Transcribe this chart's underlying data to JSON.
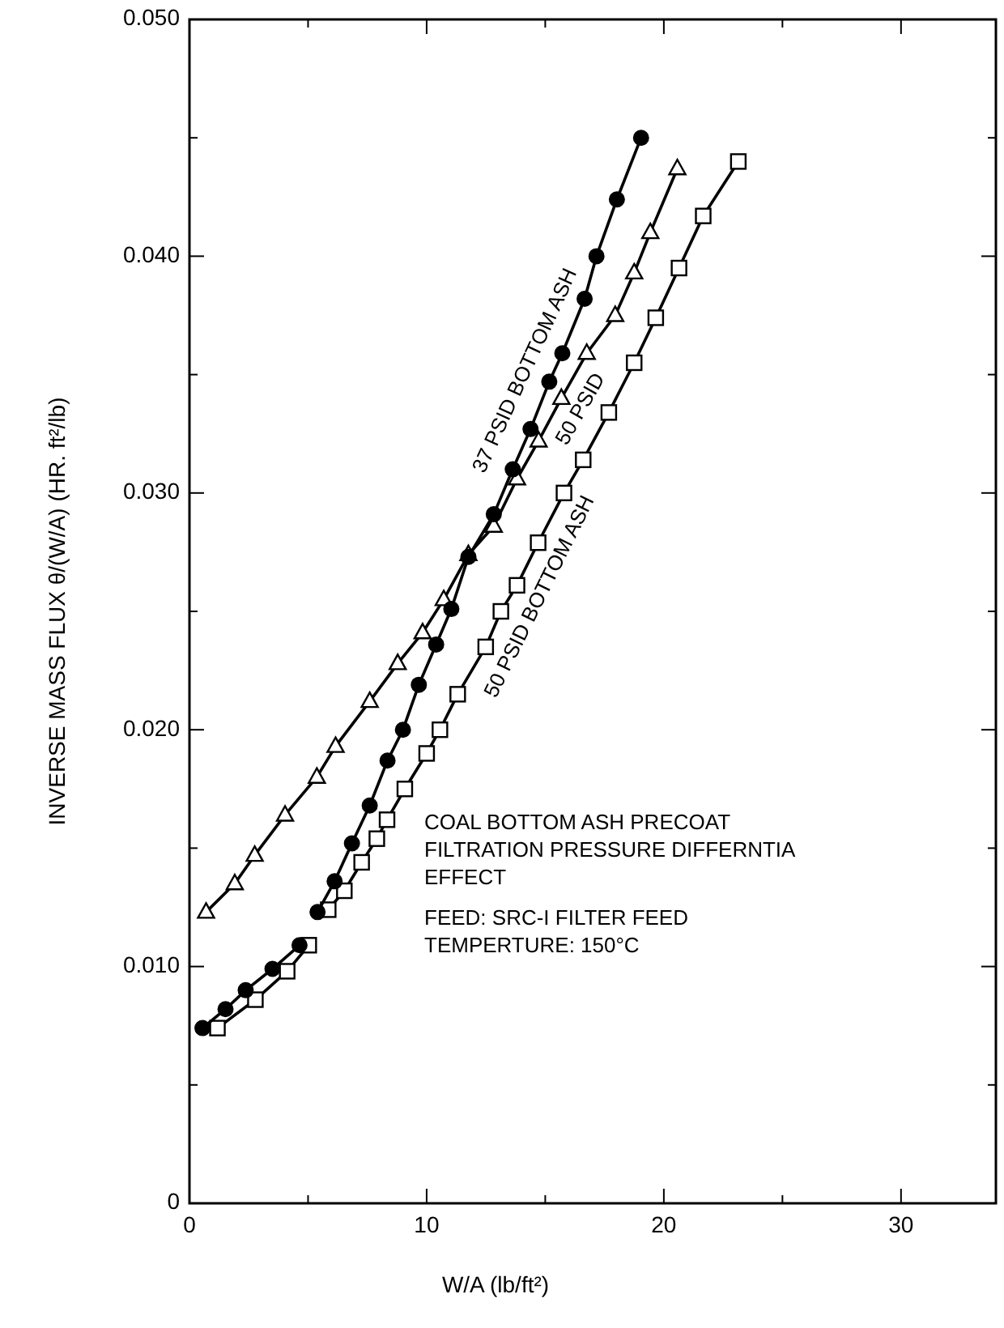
{
  "chart_data": {
    "type": "line",
    "xlabel": "W/A (lb/ft²)",
    "ylabel": "INVERSE MASS FLUX θ/(W/A) (HR. ft²/lb)",
    "xlim": [
      0,
      34
    ],
    "ylim": [
      0,
      0.05
    ],
    "xticks": [
      0,
      {
        "value": 5,
        "label": null
      },
      10,
      {
        "value": 15,
        "label": null
      },
      20,
      {
        "value": 25,
        "label": null
      },
      30
    ],
    "yticks": [
      0,
      {
        "value": 0.005,
        "label": null
      },
      {
        "value": 0.01,
        "label": "0.010"
      },
      {
        "value": 0.015,
        "label": null
      },
      {
        "value": 0.02,
        "label": "0.020"
      },
      {
        "value": 0.025,
        "label": null
      },
      {
        "value": 0.03,
        "label": "0.030"
      },
      {
        "value": 0.035,
        "label": null
      },
      {
        "value": 0.04,
        "label": "0.040"
      },
      {
        "value": 0.045,
        "label": null
      },
      {
        "value": 0.05,
        "label": "0.050"
      }
    ],
    "grid": false,
    "line_style": "solid",
    "series": [
      {
        "name": "37 PSID BOTTOM ASH",
        "color": "#000000",
        "marker": "circle",
        "x": [
          0.55,
          1.52,
          2.37,
          3.5,
          4.64,
          null,
          5.4,
          6.12,
          6.85,
          7.6,
          8.35,
          9.0,
          9.67,
          10.4,
          11.04,
          11.76,
          12.83,
          13.63,
          14.38,
          15.17,
          15.72,
          16.66,
          17.16,
          18.02,
          19.04
        ],
        "values": [
          0.0074,
          0.0082,
          0.009,
          0.0099,
          0.0109,
          null,
          0.0123,
          0.0136,
          0.0152,
          0.0168,
          0.0187,
          0.02,
          0.0219,
          0.0236,
          0.0251,
          0.0273,
          0.0291,
          0.031,
          0.0327,
          0.0347,
          0.0359,
          0.0382,
          0.04,
          0.0424,
          0.045
        ]
      },
      {
        "name": "50 PSID",
        "color": "#000000",
        "marker": "triangle",
        "x": [
          0.7,
          1.91,
          2.75,
          4.03,
          5.37,
          6.16,
          7.6,
          8.78,
          9.83,
          10.72,
          11.76,
          12.83,
          13.81,
          14.72,
          15.68,
          16.75,
          17.95,
          18.75,
          19.43,
          20.57
        ],
        "values": [
          0.0123,
          0.0135,
          0.0147,
          0.0164,
          0.018,
          0.0193,
          0.0212,
          0.0228,
          0.0241,
          0.0255,
          0.0274,
          0.0286,
          0.0306,
          0.0322,
          0.034,
          0.0359,
          0.0375,
          0.0393,
          0.041,
          0.0437
        ]
      },
      {
        "name": "50 PSID BOTTOM ASH",
        "color": "#000000",
        "marker": "square",
        "x": [
          1.18,
          2.78,
          4.12,
          5.03,
          null,
          5.85,
          6.53,
          7.26,
          7.9,
          8.33,
          9.08,
          10.0,
          10.56,
          11.31,
          12.49,
          13.13,
          13.81,
          14.7,
          15.79,
          16.6,
          17.68,
          18.75,
          19.66,
          20.64,
          21.66,
          23.14
        ],
        "values": [
          0.0074,
          0.0086,
          0.0098,
          0.0109,
          null,
          0.0124,
          0.0132,
          0.0144,
          0.0154,
          0.0162,
          0.0175,
          0.019,
          0.02,
          0.0215,
          0.0235,
          0.025,
          0.0261,
          0.0279,
          0.03,
          0.0314,
          0.0334,
          0.0355,
          0.0374,
          0.0395,
          0.0417,
          0.044
        ]
      }
    ],
    "annotations": [
      "COAL BOTTOM ASH PRECOAT",
      "FILTRATION PRESSURE DIFFERNTIA",
      "EFFECT",
      "FEED: SRC-I FILTER FEED",
      "TEMPERTURE: 150°C"
    ]
  }
}
